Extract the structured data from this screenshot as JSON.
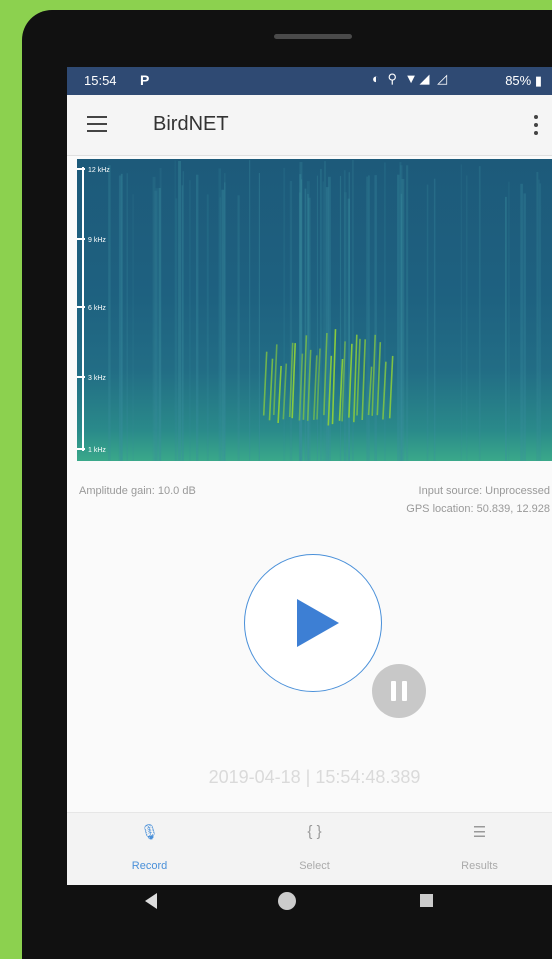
{
  "status_bar": {
    "time": "15:54",
    "notification_icon": "P",
    "system_icons": "◐ ⚲ ▼◢ ◿",
    "battery": "85% ▮"
  },
  "app_bar": {
    "title": "BirdNET",
    "menu_icon": "menu-icon",
    "more_icon": "more-vert-icon"
  },
  "spectrogram": {
    "freq_labels": [
      "12 kHz",
      "9 kHz",
      "6 kHz",
      "3 kHz",
      "1 kHz"
    ]
  },
  "info": {
    "amplitude_gain": "Amplitude gain: 10.0 dB",
    "input_source": "Input source: Unprocessed",
    "gps_location": "GPS location: 50.839, 12.928"
  },
  "controls": {
    "play_icon": "play-icon",
    "pause_icon": "pause-icon"
  },
  "timestamp": "2019-04-18 | 15:54:48.389",
  "bottom_nav": [
    {
      "label": "Record",
      "icon": "🎙",
      "active": true
    },
    {
      "label": "Select",
      "icon": "{ }",
      "active": false
    },
    {
      "label": "Results",
      "icon": "☰",
      "active": false
    }
  ],
  "colors": {
    "accent": "#4a90d9",
    "status_bar": "#2f4a73",
    "background_frame": "#8cd14f"
  }
}
